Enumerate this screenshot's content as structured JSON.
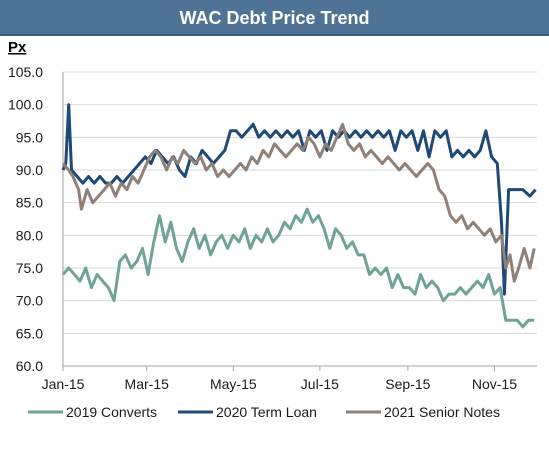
{
  "header": {
    "title": "WAC Debt Price Trend"
  },
  "colors": {
    "title_bar": "#4f7395",
    "converts": "#6fa397",
    "term_loan": "#1f4a78",
    "senior_notes": "#8f8178",
    "gridline": "#d9d9d9"
  },
  "chart_data": {
    "type": "line",
    "title": "WAC Debt Price Trend",
    "ylabel": "Px",
    "xlabel": "",
    "ylim": [
      60,
      105
    ],
    "yticks": [
      "105.0",
      "100.0",
      "95.0",
      "90.0",
      "85.0",
      "80.0",
      "75.0",
      "70.0",
      "65.0",
      "60.0"
    ],
    "yticks_values": [
      105,
      100,
      95,
      90,
      85,
      80,
      75,
      70,
      65,
      60
    ],
    "xticks": [
      "Jan-15",
      "Mar-15",
      "May-15",
      "Jul-15",
      "Sep-15",
      "Nov-15"
    ],
    "xticks_values": [
      "2015-01-01",
      "2015-03-01",
      "2015-05-01",
      "2015-07-01",
      "2015-09-01",
      "2015-11-01"
    ],
    "xlim": [
      "2015-01-01",
      "2015-12-01"
    ],
    "grid": "horizontal",
    "legend": "bottom",
    "series": [
      {
        "name": "2019 Converts",
        "color": "#6fa397",
        "points": [
          [
            "2015-01-01",
            74
          ],
          [
            "2015-01-05",
            75
          ],
          [
            "2015-01-09",
            74
          ],
          [
            "2015-01-13",
            73
          ],
          [
            "2015-01-17",
            75
          ],
          [
            "2015-01-21",
            72
          ],
          [
            "2015-01-25",
            74
          ],
          [
            "2015-01-29",
            73
          ],
          [
            "2015-02-02",
            72
          ],
          [
            "2015-02-06",
            70
          ],
          [
            "2015-02-10",
            76
          ],
          [
            "2015-02-14",
            77
          ],
          [
            "2015-02-18",
            75
          ],
          [
            "2015-02-22",
            76
          ],
          [
            "2015-02-26",
            78
          ],
          [
            "2015-03-02",
            74
          ],
          [
            "2015-03-06",
            79
          ],
          [
            "2015-03-10",
            83
          ],
          [
            "2015-03-14",
            79
          ],
          [
            "2015-03-18",
            82
          ],
          [
            "2015-03-22",
            78
          ],
          [
            "2015-03-26",
            76
          ],
          [
            "2015-03-30",
            79
          ],
          [
            "2015-04-03",
            81
          ],
          [
            "2015-04-07",
            78
          ],
          [
            "2015-04-11",
            80
          ],
          [
            "2015-04-15",
            77
          ],
          [
            "2015-04-19",
            79
          ],
          [
            "2015-04-23",
            80
          ],
          [
            "2015-04-27",
            78
          ],
          [
            "2015-05-01",
            80
          ],
          [
            "2015-05-05",
            79
          ],
          [
            "2015-05-09",
            81
          ],
          [
            "2015-05-13",
            78
          ],
          [
            "2015-05-17",
            80
          ],
          [
            "2015-05-21",
            79
          ],
          [
            "2015-05-25",
            81
          ],
          [
            "2015-05-29",
            79
          ],
          [
            "2015-06-02",
            80
          ],
          [
            "2015-06-06",
            82
          ],
          [
            "2015-06-10",
            81
          ],
          [
            "2015-06-14",
            83
          ],
          [
            "2015-06-18",
            82
          ],
          [
            "2015-06-22",
            84
          ],
          [
            "2015-06-26",
            82
          ],
          [
            "2015-06-30",
            83
          ],
          [
            "2015-07-04",
            81
          ],
          [
            "2015-07-08",
            78
          ],
          [
            "2015-07-12",
            81
          ],
          [
            "2015-07-16",
            80
          ],
          [
            "2015-07-20",
            78
          ],
          [
            "2015-07-24",
            79
          ],
          [
            "2015-07-28",
            77
          ],
          [
            "2015-08-01",
            77
          ],
          [
            "2015-08-05",
            74
          ],
          [
            "2015-08-09",
            75
          ],
          [
            "2015-08-13",
            74
          ],
          [
            "2015-08-17",
            75
          ],
          [
            "2015-08-21",
            72
          ],
          [
            "2015-08-25",
            74
          ],
          [
            "2015-08-29",
            72
          ],
          [
            "2015-09-02",
            72
          ],
          [
            "2015-09-06",
            71
          ],
          [
            "2015-09-10",
            74
          ],
          [
            "2015-09-14",
            72
          ],
          [
            "2015-09-18",
            73
          ],
          [
            "2015-09-22",
            72
          ],
          [
            "2015-09-26",
            70
          ],
          [
            "2015-09-30",
            71
          ],
          [
            "2015-10-04",
            71
          ],
          [
            "2015-10-08",
            72
          ],
          [
            "2015-10-12",
            71
          ],
          [
            "2015-10-16",
            72
          ],
          [
            "2015-10-20",
            73
          ],
          [
            "2015-10-24",
            72
          ],
          [
            "2015-10-28",
            74
          ],
          [
            "2015-11-01",
            71
          ],
          [
            "2015-11-05",
            72
          ],
          [
            "2015-11-09",
            67
          ],
          [
            "2015-11-13",
            67
          ],
          [
            "2015-11-17",
            67
          ],
          [
            "2015-11-21",
            66
          ],
          [
            "2015-11-25",
            67
          ],
          [
            "2015-11-29",
            67
          ]
        ]
      },
      {
        "name": "2020 Term Loan",
        "color": "#1f4a78",
        "points": [
          [
            "2015-01-01",
            90
          ],
          [
            "2015-01-03",
            91
          ],
          [
            "2015-01-05",
            100
          ],
          [
            "2015-01-07",
            90
          ],
          [
            "2015-01-11",
            89
          ],
          [
            "2015-01-15",
            88
          ],
          [
            "2015-01-19",
            89
          ],
          [
            "2015-01-23",
            88
          ],
          [
            "2015-01-27",
            89
          ],
          [
            "2015-01-31",
            88
          ],
          [
            "2015-02-04",
            88
          ],
          [
            "2015-02-08",
            89
          ],
          [
            "2015-02-12",
            88
          ],
          [
            "2015-02-16",
            89
          ],
          [
            "2015-02-20",
            90
          ],
          [
            "2015-02-24",
            91
          ],
          [
            "2015-02-28",
            92
          ],
          [
            "2015-03-04",
            91
          ],
          [
            "2015-03-08",
            93
          ],
          [
            "2015-03-12",
            92
          ],
          [
            "2015-03-16",
            91
          ],
          [
            "2015-03-20",
            92
          ],
          [
            "2015-03-24",
            90
          ],
          [
            "2015-03-28",
            89
          ],
          [
            "2015-04-01",
            92
          ],
          [
            "2015-04-05",
            91
          ],
          [
            "2015-04-09",
            93
          ],
          [
            "2015-04-13",
            92
          ],
          [
            "2015-04-17",
            91
          ],
          [
            "2015-04-21",
            92
          ],
          [
            "2015-04-25",
            93
          ],
          [
            "2015-04-29",
            96
          ],
          [
            "2015-05-03",
            96
          ],
          [
            "2015-05-07",
            95
          ],
          [
            "2015-05-11",
            96
          ],
          [
            "2015-05-15",
            97
          ],
          [
            "2015-05-19",
            95
          ],
          [
            "2015-05-23",
            96
          ],
          [
            "2015-05-27",
            95
          ],
          [
            "2015-05-31",
            96
          ],
          [
            "2015-06-04",
            95
          ],
          [
            "2015-06-08",
            96
          ],
          [
            "2015-06-12",
            95
          ],
          [
            "2015-06-16",
            96
          ],
          [
            "2015-06-20",
            93
          ],
          [
            "2015-06-24",
            96
          ],
          [
            "2015-06-28",
            95
          ],
          [
            "2015-07-02",
            96
          ],
          [
            "2015-07-06",
            93
          ],
          [
            "2015-07-10",
            96
          ],
          [
            "2015-07-14",
            95
          ],
          [
            "2015-07-18",
            96
          ],
          [
            "2015-07-22",
            95
          ],
          [
            "2015-07-26",
            96
          ],
          [
            "2015-07-30",
            95
          ],
          [
            "2015-08-03",
            96
          ],
          [
            "2015-08-07",
            95
          ],
          [
            "2015-08-11",
            96
          ],
          [
            "2015-08-15",
            95
          ],
          [
            "2015-08-19",
            96
          ],
          [
            "2015-08-23",
            93
          ],
          [
            "2015-08-27",
            96
          ],
          [
            "2015-08-31",
            95
          ],
          [
            "2015-09-04",
            96
          ],
          [
            "2015-09-08",
            93
          ],
          [
            "2015-09-12",
            96
          ],
          [
            "2015-09-16",
            92
          ],
          [
            "2015-09-20",
            96
          ],
          [
            "2015-09-24",
            95
          ],
          [
            "2015-09-28",
            96
          ],
          [
            "2015-10-02",
            92
          ],
          [
            "2015-10-06",
            93
          ],
          [
            "2015-10-10",
            92
          ],
          [
            "2015-10-14",
            93
          ],
          [
            "2015-10-18",
            92
          ],
          [
            "2015-10-22",
            93
          ],
          [
            "2015-10-26",
            96
          ],
          [
            "2015-10-30",
            92
          ],
          [
            "2015-11-03",
            91
          ],
          [
            "2015-11-06",
            82
          ],
          [
            "2015-11-08",
            71
          ],
          [
            "2015-11-11",
            87
          ],
          [
            "2015-11-16",
            87
          ],
          [
            "2015-11-21",
            87
          ],
          [
            "2015-11-26",
            86
          ],
          [
            "2015-11-30",
            87
          ]
        ]
      },
      {
        "name": "2021 Senior Notes",
        "color": "#8f8178",
        "points": [
          [
            "2015-01-01",
            91
          ],
          [
            "2015-01-05",
            90
          ],
          [
            "2015-01-08",
            89
          ],
          [
            "2015-01-12",
            87
          ],
          [
            "2015-01-14",
            84
          ],
          [
            "2015-01-18",
            87
          ],
          [
            "2015-01-22",
            85
          ],
          [
            "2015-01-26",
            86
          ],
          [
            "2015-01-30",
            87
          ],
          [
            "2015-02-03",
            88
          ],
          [
            "2015-02-07",
            86
          ],
          [
            "2015-02-11",
            88
          ],
          [
            "2015-02-15",
            87
          ],
          [
            "2015-02-19",
            89
          ],
          [
            "2015-02-23",
            88
          ],
          [
            "2015-02-27",
            90
          ],
          [
            "2015-03-03",
            92
          ],
          [
            "2015-03-07",
            93
          ],
          [
            "2015-03-11",
            92
          ],
          [
            "2015-03-15",
            90
          ],
          [
            "2015-03-19",
            92
          ],
          [
            "2015-03-23",
            91
          ],
          [
            "2015-03-27",
            93
          ],
          [
            "2015-03-31",
            92
          ],
          [
            "2015-04-04",
            91
          ],
          [
            "2015-04-08",
            92
          ],
          [
            "2015-04-12",
            90
          ],
          [
            "2015-04-16",
            91
          ],
          [
            "2015-04-20",
            89
          ],
          [
            "2015-04-24",
            90
          ],
          [
            "2015-04-28",
            89
          ],
          [
            "2015-05-02",
            90
          ],
          [
            "2015-05-06",
            91
          ],
          [
            "2015-05-10",
            90
          ],
          [
            "2015-05-14",
            92
          ],
          [
            "2015-05-18",
            91
          ],
          [
            "2015-05-22",
            93
          ],
          [
            "2015-05-26",
            92
          ],
          [
            "2015-05-30",
            94
          ],
          [
            "2015-06-03",
            93
          ],
          [
            "2015-06-07",
            92
          ],
          [
            "2015-06-11",
            93
          ],
          [
            "2015-06-15",
            94
          ],
          [
            "2015-06-19",
            93
          ],
          [
            "2015-06-23",
            95
          ],
          [
            "2015-06-27",
            94
          ],
          [
            "2015-07-01",
            92
          ],
          [
            "2015-07-05",
            94
          ],
          [
            "2015-07-09",
            93
          ],
          [
            "2015-07-13",
            95
          ],
          [
            "2015-07-17",
            97
          ],
          [
            "2015-07-21",
            94
          ],
          [
            "2015-07-25",
            93
          ],
          [
            "2015-07-29",
            94
          ],
          [
            "2015-08-02",
            92
          ],
          [
            "2015-08-06",
            93
          ],
          [
            "2015-08-10",
            92
          ],
          [
            "2015-08-14",
            91
          ],
          [
            "2015-08-18",
            92
          ],
          [
            "2015-08-22",
            91
          ],
          [
            "2015-08-26",
            90
          ],
          [
            "2015-08-30",
            91
          ],
          [
            "2015-09-03",
            90
          ],
          [
            "2015-09-07",
            89
          ],
          [
            "2015-09-11",
            90
          ],
          [
            "2015-09-15",
            91
          ],
          [
            "2015-09-19",
            90
          ],
          [
            "2015-09-23",
            87
          ],
          [
            "2015-09-27",
            86
          ],
          [
            "2015-10-01",
            83
          ],
          [
            "2015-10-05",
            82
          ],
          [
            "2015-10-09",
            83
          ],
          [
            "2015-10-13",
            81
          ],
          [
            "2015-10-17",
            82
          ],
          [
            "2015-10-21",
            81
          ],
          [
            "2015-10-25",
            80
          ],
          [
            "2015-10-29",
            81
          ],
          [
            "2015-11-02",
            79
          ],
          [
            "2015-11-06",
            80
          ],
          [
            "2015-11-09",
            75
          ],
          [
            "2015-11-12",
            77
          ],
          [
            "2015-11-15",
            73
          ],
          [
            "2015-11-18",
            75
          ],
          [
            "2015-11-22",
            78
          ],
          [
            "2015-11-26",
            75
          ],
          [
            "2015-11-29",
            78
          ]
        ]
      }
    ]
  }
}
